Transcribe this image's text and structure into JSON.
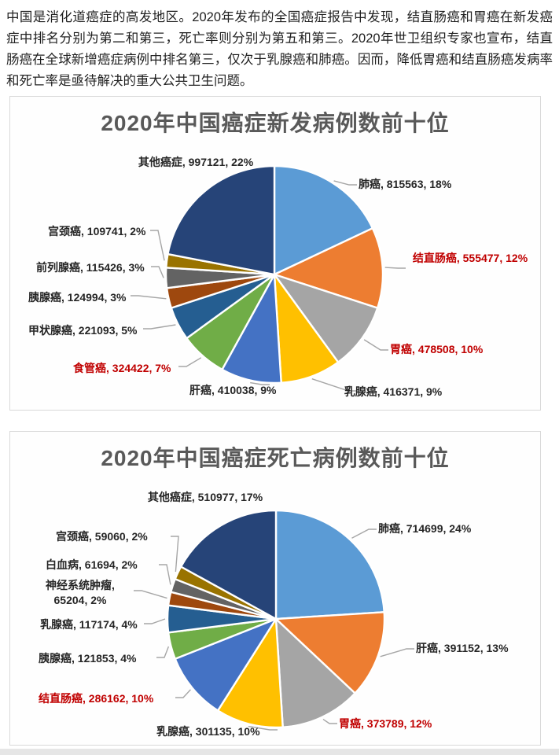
{
  "intro_paragraph": "中国是消化道癌症的高发地区。2020年发布的全国癌症报告中发现，结直肠癌和胃癌在新发癌症中排名分别为第二和第三，死亡率则分别为第五和第三。2020年世卫组织专家也宣布，结直肠癌在全球新增癌症病例中排名第三，仅次于乳腺癌和肺癌。因而，降低胃癌和结直肠癌发病率和死亡率是亟待解决的重大公共卫生问题。",
  "colors": {
    "title_text": "#595959",
    "label_text": "#262626",
    "label_highlight_text": "#C00000",
    "leader_line": "#A6A6A6",
    "card_border": "#D9D9D9",
    "pie_slice_stroke": "#FFFFFF"
  },
  "chart_data": [
    {
      "type": "pie",
      "title": "2020年中国癌症新发病例数前十位",
      "labels": [
        "肺癌",
        "结直肠癌",
        "胃癌",
        "乳腺癌",
        "肝癌",
        "食管癌",
        "甲状腺癌",
        "胰腺癌",
        "前列腺癌",
        "宫颈癌",
        "其他癌症"
      ],
      "values": [
        815563,
        555477,
        478508,
        416371,
        410038,
        324422,
        221093,
        124994,
        115426,
        109741,
        997121
      ],
      "percents": [
        18,
        12,
        10,
        9,
        9,
        7,
        5,
        3,
        3,
        2,
        22
      ],
      "colors": [
        "#5B9BD5",
        "#ED7D31",
        "#A5A5A5",
        "#FFC000",
        "#4472C4",
        "#70AD47",
        "#255E91",
        "#9E480E",
        "#636363",
        "#997300",
        "#264478"
      ],
      "red_labels": [
        false,
        true,
        true,
        false,
        false,
        true,
        false,
        false,
        false,
        false,
        false
      ],
      "label_texts": [
        "肺癌, 815563, 18%",
        "结直肠癌, 555477, 12%",
        "胃癌, 478508, 10%",
        "乳腺癌, 416371, 9%",
        "肝癌, 410038, 9%",
        "食管癌, 324422, 7%",
        "甲状腺癌, 221093, 5%",
        "胰腺癌, 124994, 3%",
        "前列腺癌, 115426, 3%",
        "宫颈癌, 109741, 2%",
        "其他癌症, 997121, 22%"
      ],
      "start_angle_deg": 0,
      "direction": "clockwise",
      "legend": "none"
    },
    {
      "type": "pie",
      "title": "2020年中国癌症死亡病例数前十位",
      "labels": [
        "肺癌",
        "肝癌",
        "胃癌",
        "乳腺癌",
        "结直肠癌",
        "胰腺癌",
        "乳腺癌",
        "神经系统肿瘤",
        "白血病",
        "宫颈癌",
        "其他癌症"
      ],
      "values": [
        714699,
        391152,
        373789,
        301135,
        286162,
        121853,
        117174,
        65204,
        61694,
        59060,
        510977
      ],
      "percents": [
        24,
        13,
        12,
        10,
        10,
        4,
        4,
        2,
        2,
        2,
        17
      ],
      "colors": [
        "#5B9BD5",
        "#ED7D31",
        "#A5A5A5",
        "#FFC000",
        "#4472C4",
        "#70AD47",
        "#255E91",
        "#9E480E",
        "#636363",
        "#997300",
        "#264478"
      ],
      "red_labels": [
        false,
        false,
        true,
        false,
        true,
        false,
        false,
        false,
        false,
        false,
        false
      ],
      "label_texts": [
        "肺癌, 714699, 24%",
        "肝癌, 391152, 13%",
        "胃癌, 373789, 12%",
        "乳腺癌, 301135, 10%",
        "结直肠癌, 286162, 10%",
        "胰腺癌, 121853, 4%",
        "乳腺癌, 117174, 4%",
        "神经系统肿瘤, 65204, 2%",
        "白血病, 61694, 2%",
        "宫颈癌, 59060, 2%",
        "其他癌症, 510977, 17%"
      ],
      "start_angle_deg": 0,
      "direction": "clockwise",
      "legend": "none"
    }
  ]
}
